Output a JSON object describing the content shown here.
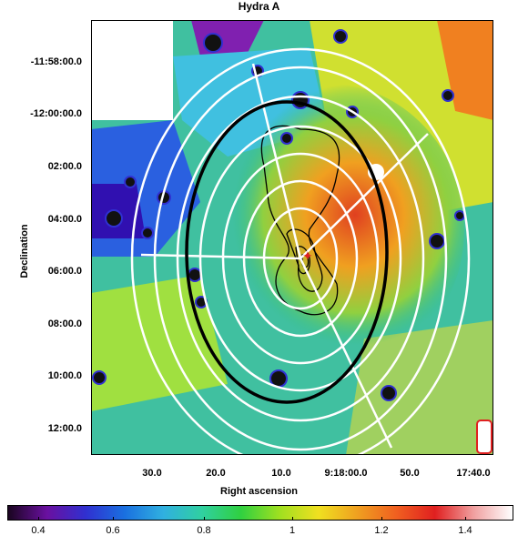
{
  "figure": {
    "title": "Hydra A",
    "ylabel": "Declination",
    "xlabel": "Right ascension",
    "yticks": [
      "-11:58:00.0",
      "-12:00:00.0",
      "02:00.0",
      "04:00.0",
      "06:00.0",
      "08:00.0",
      "10:00.0",
      "12:00.0"
    ],
    "xticks": [
      "30.0",
      "20.0",
      "10.0",
      "9:18:00.0",
      "50.0",
      "17:40.0"
    ],
    "colorbar_ticks": [
      "0.4",
      "0.6",
      "0.8",
      "1",
      "1.2",
      "1.4"
    ],
    "colorbar_colors": [
      "#1a0520",
      "#6a10a0",
      "#3030d0",
      "#1a70e0",
      "#30b0e0",
      "#30d0a0",
      "#30d040",
      "#a0e020",
      "#f0e020",
      "#f0a020",
      "#f06020",
      "#e02020",
      "#f0a0a0",
      "#ffffff"
    ]
  }
}
